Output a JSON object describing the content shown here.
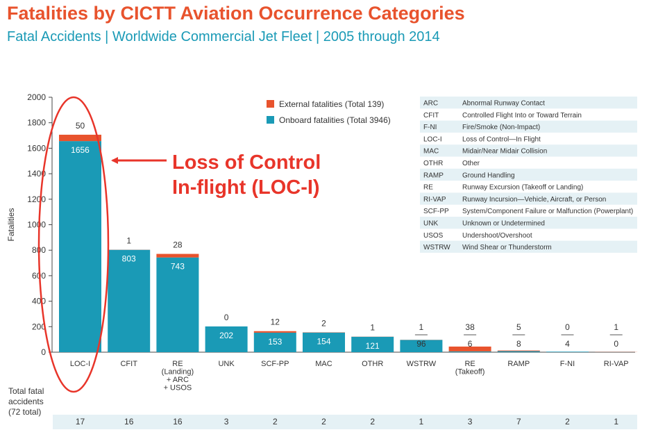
{
  "title": "Fatalities by CICTT Aviation Occurrence Categories",
  "subtitle": "Fatal Accidents | Worldwide Commercial Jet Fleet | 2005 through 2014",
  "annotation": [
    "Loss of Control",
    "In-flight (LOC-I)"
  ],
  "count_label": [
    "Total fatal",
    "accidents",
    "(72 total)"
  ],
  "colors": {
    "onboard": "#1a9ab6",
    "external": "#e8532d",
    "annotation": "#e8352a",
    "glossary_band": "#e5f1f5"
  },
  "chart_data": {
    "type": "bar",
    "ylabel": "Fatalities",
    "ylim": [
      0,
      2000
    ],
    "yticks": [
      0,
      200,
      400,
      600,
      800,
      1000,
      1200,
      1400,
      1600,
      1800,
      2000
    ],
    "grid": false,
    "legend_position": "top-right",
    "categories": [
      [
        "LOC-I"
      ],
      [
        "CFIT"
      ],
      [
        "RE",
        "(Landing)",
        "+ ARC",
        "+ USOS"
      ],
      [
        "UNK"
      ],
      [
        "SCF-PP"
      ],
      [
        "MAC"
      ],
      [
        "OTHR"
      ],
      [
        "WSTRW"
      ],
      [
        "RE",
        "(Takeoff)"
      ],
      [
        "RAMP"
      ],
      [
        "F-NI"
      ],
      [
        "RI-VAP"
      ]
    ],
    "series": [
      {
        "name": "Onboard fatalities (Total 3946)",
        "values": [
          1656,
          803,
          743,
          202,
          153,
          154,
          121,
          96,
          6,
          8,
          4,
          0
        ]
      },
      {
        "name": "External fatalities (Total 139)",
        "values": [
          50,
          1,
          28,
          0,
          12,
          2,
          1,
          1,
          38,
          5,
          0,
          1
        ]
      }
    ],
    "fatal_accidents": [
      "17",
      "16",
      "16",
      "3",
      "2",
      "2",
      "2",
      "1",
      "3",
      "7",
      "2",
      "1"
    ]
  },
  "glossary": [
    {
      "code": "ARC",
      "desc": "Abnormal Runway Contact"
    },
    {
      "code": "CFIT",
      "desc": "Controlled Flight Into or Toward Terrain"
    },
    {
      "code": "F-NI",
      "desc": "Fire/Smoke (Non-Impact)"
    },
    {
      "code": "LOC-I",
      "desc": "Loss of Control—In Flight"
    },
    {
      "code": "MAC",
      "desc": "Midair/Near Midair Collision"
    },
    {
      "code": "OTHR",
      "desc": "Other"
    },
    {
      "code": "RAMP",
      "desc": "Ground Handling"
    },
    {
      "code": "RE",
      "desc": "Runway Excursion (Takeoff or Landing)"
    },
    {
      "code": "RI-VAP",
      "desc": "Runway Incursion—Vehicle, Aircraft, or Person"
    },
    {
      "code": "SCF-PP",
      "desc": "System/Component Failure or Malfunction (Powerplant)"
    },
    {
      "code": "UNK",
      "desc": "Unknown or Undetermined"
    },
    {
      "code": "USOS",
      "desc": "Undershoot/Overshoot"
    },
    {
      "code": "WSTRW",
      "desc": "Wind Shear or Thunderstorm"
    }
  ]
}
